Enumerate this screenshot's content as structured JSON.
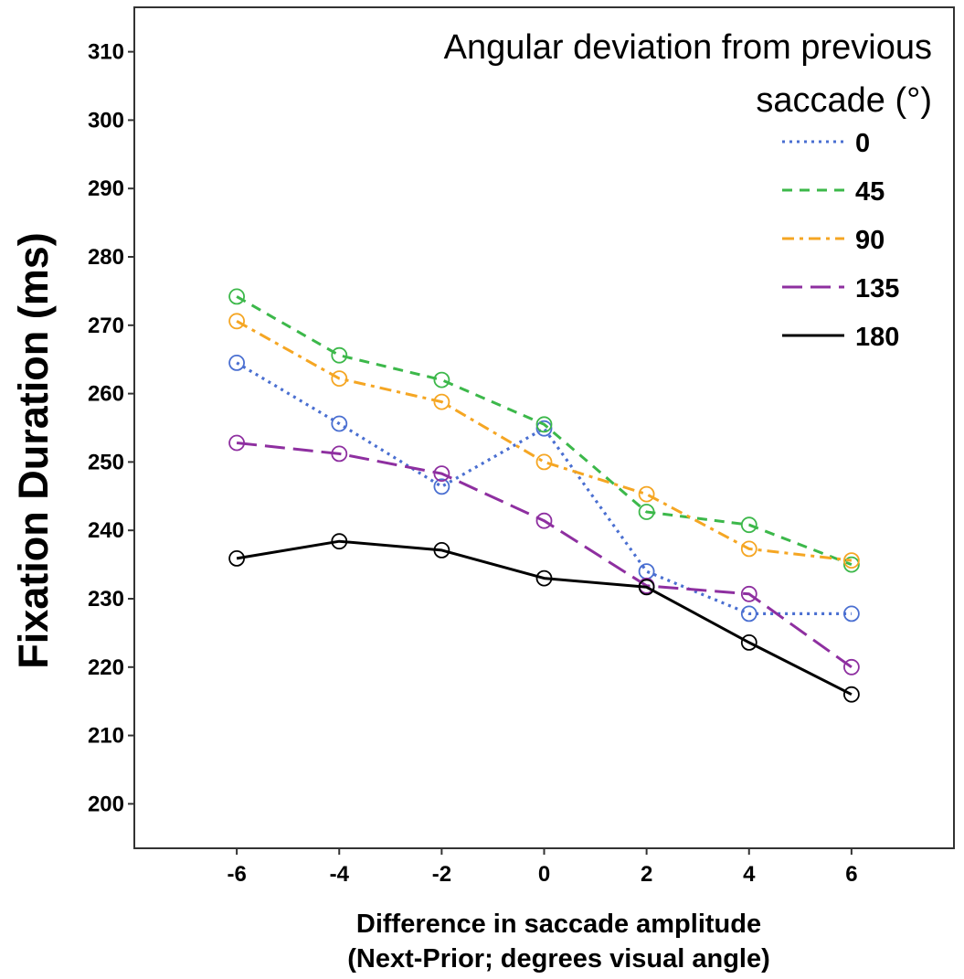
{
  "chart_data": {
    "type": "line",
    "ylabel": "Fixation Duration (ms)",
    "xlabel_line1": "Difference in saccade amplitude",
    "xlabel_line2": "(Next-Prior; degrees visual angle)",
    "xlim": [
      -8,
      8
    ],
    "ylim": [
      193.5,
      316.5
    ],
    "x_ticks": [
      -6,
      -4,
      -2,
      0,
      2,
      4,
      6
    ],
    "y_ticks": [
      200,
      210,
      220,
      230,
      240,
      250,
      260,
      270,
      280,
      290,
      300,
      310
    ],
    "grid": false,
    "legend_position": "top-right",
    "legend_title_line1": "Angular deviation from previous",
    "legend_title_line2": "saccade (°)",
    "x": [
      -6,
      -4,
      -2,
      0,
      2,
      4,
      6
    ],
    "series": [
      {
        "name": "0",
        "color": "#4a6fd1",
        "dash": "dotted",
        "values": [
          264.5,
          255.6,
          246.4,
          254.9,
          234.0,
          227.8,
          227.8
        ]
      },
      {
        "name": "45",
        "color": "#3cb84a",
        "dash": "dashed",
        "values": [
          274.2,
          265.6,
          262.0,
          255.5,
          242.7,
          240.8,
          235.0
        ]
      },
      {
        "name": "90",
        "color": "#f5a623",
        "dash": "dashdot",
        "values": [
          270.6,
          262.2,
          258.8,
          250.0,
          245.3,
          237.3,
          235.6
        ]
      },
      {
        "name": "135",
        "color": "#8e2fa0",
        "dash": "longdash",
        "values": [
          252.8,
          251.2,
          248.3,
          241.4,
          231.9,
          230.7,
          220.0
        ]
      },
      {
        "name": "180",
        "color": "#000000",
        "dash": "solid",
        "values": [
          235.9,
          238.4,
          237.1,
          233.0,
          231.7,
          223.6,
          216.0
        ]
      }
    ]
  }
}
